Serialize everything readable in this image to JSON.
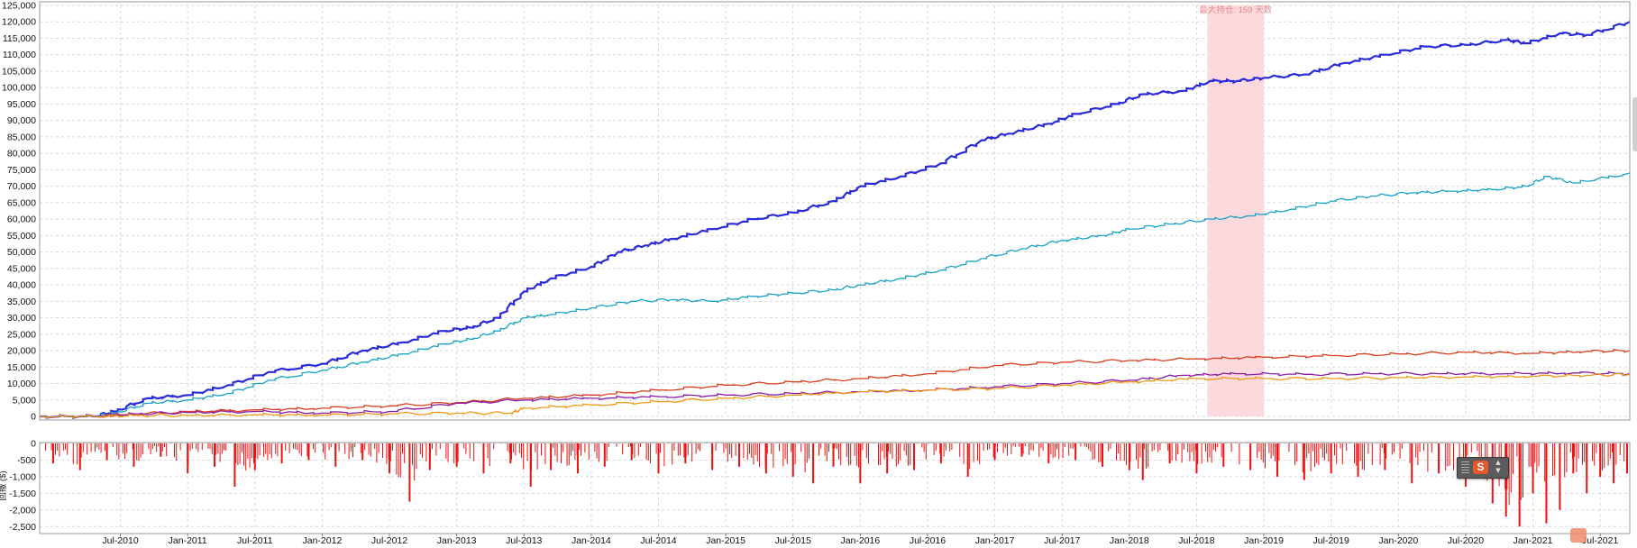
{
  "chart_data": [
    {
      "type": "line",
      "title": "",
      "xlabel": "",
      "ylabel": "",
      "ylim": [
        0,
        125000
      ],
      "yticks": [
        0,
        5000,
        10000,
        15000,
        20000,
        25000,
        30000,
        35000,
        40000,
        45000,
        50000,
        55000,
        60000,
        65000,
        70000,
        75000,
        80000,
        85000,
        90000,
        95000,
        100000,
        105000,
        110000,
        115000,
        120000,
        125000
      ],
      "ytick_labels": [
        "0",
        "5,000",
        "10,000",
        "15,000",
        "20,000",
        "25,000",
        "30,000",
        "35,000",
        "40,000",
        "45,000",
        "50,000",
        "55,000",
        "60,000",
        "65,000",
        "70,000",
        "75,000",
        "80,000",
        "85,000",
        "90,000",
        "95,000",
        "100,000",
        "105,000",
        "110,000",
        "115,000",
        "120,000",
        "125,000"
      ],
      "xlim": [
        2009.9,
        2021.72
      ],
      "grid": true,
      "highlight_region": {
        "x": [
          2018.58,
          2019.0
        ],
        "label": "最大持仓: 159 天数",
        "color": "#fbd9dc"
      },
      "series": [
        {
          "color": "#2b2bd9",
          "x": [
            2009.9,
            2010.3,
            2010.45,
            2010.7,
            2011.0,
            2011.3,
            2011.6,
            2012.0,
            2012.3,
            2012.6,
            2012.9,
            2013.1,
            2013.3,
            2013.5,
            2013.7,
            2014.0,
            2014.2,
            2014.4,
            2014.6,
            2014.9,
            2015.2,
            2015.5,
            2015.8,
            2016.0,
            2016.3,
            2016.6,
            2016.9,
            2017.1,
            2017.4,
            2017.6,
            2017.9,
            2018.1,
            2018.4,
            2018.6,
            2018.8,
            2019.0,
            2019.3,
            2019.6,
            2019.9,
            2020.2,
            2020.5,
            2020.8,
            2020.95,
            2021.2,
            2021.4,
            2021.72
          ],
          "y": [
            0,
            0,
            1500,
            5500,
            6500,
            9500,
            13500,
            16000,
            20000,
            22500,
            26000,
            27000,
            30000,
            38000,
            42000,
            45500,
            50000,
            52000,
            54000,
            57000,
            60000,
            62000,
            65500,
            70000,
            73000,
            77000,
            84000,
            86000,
            89000,
            92000,
            95000,
            98000,
            99000,
            102000,
            102000,
            103000,
            104000,
            107500,
            110000,
            112500,
            113000,
            114500,
            113500,
            116500,
            116000,
            120000
          ]
        },
        {
          "color": "#1aa3c6",
          "x": [
            2009.9,
            2010.3,
            2010.45,
            2010.7,
            2011.0,
            2011.3,
            2011.6,
            2012.0,
            2012.3,
            2012.6,
            2012.9,
            2013.1,
            2013.3,
            2013.5,
            2013.7,
            2014.0,
            2014.3,
            2014.6,
            2014.9,
            2015.2,
            2015.5,
            2015.8,
            2016.0,
            2016.3,
            2016.6,
            2016.9,
            2017.2,
            2017.5,
            2017.8,
            2018.0,
            2018.3,
            2018.6,
            2018.9,
            2019.2,
            2019.5,
            2019.8,
            2020.1,
            2020.4,
            2020.7,
            2020.95,
            2021.1,
            2021.3,
            2021.72
          ],
          "y": [
            0,
            0,
            1000,
            4000,
            5000,
            7000,
            11000,
            14000,
            16500,
            19000,
            22000,
            23500,
            26000,
            30000,
            31000,
            33000,
            35000,
            35500,
            35000,
            36500,
            37500,
            38500,
            40000,
            42000,
            44500,
            48000,
            51000,
            53500,
            55000,
            57000,
            58500,
            60000,
            61000,
            63000,
            65500,
            67000,
            68000,
            68500,
            69000,
            70000,
            73000,
            71000,
            74000
          ]
        },
        {
          "color": "#d9401f",
          "x": [
            2009.9,
            2010.3,
            2010.5,
            2011.0,
            2011.5,
            2012.0,
            2012.5,
            2013.0,
            2013.5,
            2014.0,
            2014.5,
            2015.0,
            2015.5,
            2016.0,
            2016.5,
            2017.0,
            2017.5,
            2018.0,
            2018.5,
            2019.0,
            2019.5,
            2020.0,
            2020.5,
            2021.0,
            2021.4,
            2021.72
          ],
          "y": [
            0,
            0,
            500,
            1500,
            2000,
            2500,
            3200,
            4200,
            5500,
            6500,
            8000,
            9500,
            10500,
            11500,
            13000,
            15500,
            16500,
            17000,
            17500,
            18000,
            18500,
            19000,
            19500,
            19200,
            19800,
            20000
          ]
        },
        {
          "color": "#8b1fa8",
          "x": [
            2009.9,
            2010.3,
            2010.6,
            2011.0,
            2011.5,
            2012.0,
            2012.5,
            2013.0,
            2013.5,
            2014.0,
            2014.5,
            2015.0,
            2015.5,
            2016.0,
            2016.5,
            2017.0,
            2017.5,
            2018.0,
            2018.4,
            2018.8,
            2019.3,
            2019.8,
            2020.3,
            2020.8,
            2021.3,
            2021.72
          ],
          "y": [
            0,
            0,
            800,
            1200,
            1500,
            1000,
            1500,
            4000,
            5000,
            5500,
            6000,
            6500,
            7000,
            7500,
            8000,
            9000,
            10000,
            11000,
            12500,
            13000,
            12800,
            13000,
            13000,
            13000,
            13200,
            13000
          ]
        },
        {
          "color": "#f09a1a",
          "x": [
            2009.9,
            2010.3,
            2010.6,
            2011.0,
            2011.5,
            2012.0,
            2012.5,
            2013.0,
            2013.4,
            2013.5,
            2014.0,
            2014.5,
            2015.0,
            2015.5,
            2016.0,
            2016.5,
            2017.0,
            2017.5,
            2018.0,
            2018.5,
            2019.0,
            2019.5,
            2020.0,
            2020.5,
            2021.0,
            2021.4,
            2021.72
          ],
          "y": [
            0,
            0,
            300,
            300,
            500,
            400,
            800,
            1000,
            1000,
            2500,
            3500,
            4500,
            5500,
            6500,
            7500,
            8000,
            8500,
            9500,
            10500,
            11500,
            11500,
            11500,
            11800,
            12000,
            12200,
            12500,
            12800
          ]
        }
      ]
    },
    {
      "type": "bar",
      "title": "",
      "xlabel": "",
      "ylabel": "回撤 ($)",
      "ylim": [
        -2600,
        0
      ],
      "yticks": [
        0,
        -500,
        -1000,
        -1500,
        -2000,
        -2500
      ],
      "ytick_labels": [
        "0",
        "-500",
        "-1,000",
        "-1,500",
        "-2,000",
        "-2,500"
      ],
      "xlim": [
        2009.9,
        2021.72
      ],
      "bar_color": "#ee1111",
      "x": [
        2010.0,
        2010.2,
        2010.4,
        2010.6,
        2010.8,
        2011.0,
        2011.2,
        2011.35,
        2011.5,
        2011.7,
        2011.9,
        2012.1,
        2012.3,
        2012.5,
        2012.65,
        2012.8,
        2013.0,
        2013.2,
        2013.4,
        2013.55,
        2013.7,
        2013.9,
        2014.1,
        2014.3,
        2014.5,
        2014.7,
        2014.9,
        2015.1,
        2015.3,
        2015.5,
        2015.65,
        2015.8,
        2016.0,
        2016.2,
        2016.4,
        2016.6,
        2016.8,
        2017.0,
        2017.2,
        2017.4,
        2017.6,
        2017.8,
        2018.0,
        2018.1,
        2018.3,
        2018.5,
        2018.7,
        2018.9,
        2019.1,
        2019.3,
        2019.5,
        2019.7,
        2019.9,
        2020.1,
        2020.3,
        2020.5,
        2020.7,
        2020.8,
        2020.9,
        2021.0,
        2021.1,
        2021.2,
        2021.3,
        2021.4,
        2021.5,
        2021.6,
        2021.7
      ],
      "values": [
        -600,
        -800,
        -500,
        -700,
        -400,
        -900,
        -700,
        -1300,
        -800,
        -600,
        -500,
        -700,
        -500,
        -900,
        -1750,
        -800,
        -700,
        -900,
        -600,
        -1300,
        -800,
        -900,
        -700,
        -500,
        -900,
        -600,
        -800,
        -700,
        -900,
        -1000,
        -1200,
        -700,
        -1200,
        -900,
        -800,
        -600,
        -1000,
        -500,
        -400,
        -600,
        -500,
        -700,
        -800,
        -1100,
        -600,
        -900,
        -700,
        -800,
        -1000,
        -1100,
        -900,
        -1000,
        -800,
        -1200,
        -900,
        -1300,
        -1800,
        -2200,
        -2500,
        -1500,
        -2400,
        -2000,
        -900,
        -1500,
        -1000,
        -1200,
        -900
      ]
    }
  ],
  "x_axis": {
    "labels": [
      "Jul-2010",
      "Jan-2011",
      "Jul-2011",
      "Jan-2012",
      "Jul-2012",
      "Jan-2013",
      "Jul-2013",
      "Jan-2014",
      "Jul-2014",
      "Jan-2015",
      "Jul-2015",
      "Jan-2016",
      "Jul-2016",
      "Jan-2017",
      "Jul-2017",
      "Jan-2018",
      "Jul-2018",
      "Jan-2019",
      "Jul-2019",
      "Jan-2020",
      "Jul-2020",
      "Jan-2021",
      "Jul-2021"
    ],
    "positions": [
      2010.5,
      2011.0,
      2011.5,
      2012.0,
      2012.5,
      2013.0,
      2013.5,
      2014.0,
      2014.5,
      2015.0,
      2015.5,
      2016.0,
      2016.5,
      2017.0,
      2017.5,
      2018.0,
      2018.5,
      2019.0,
      2019.5,
      2020.0,
      2020.5,
      2021.0,
      2021.5
    ]
  },
  "toolbar": {
    "logo_letter": "S"
  },
  "icons": {
    "toolbar-grip": "grip-icon",
    "toolbar-logo": "sogou-s-icon",
    "toolbar-menu": "chevron-down-icon",
    "watermark": "watermark-logo"
  }
}
